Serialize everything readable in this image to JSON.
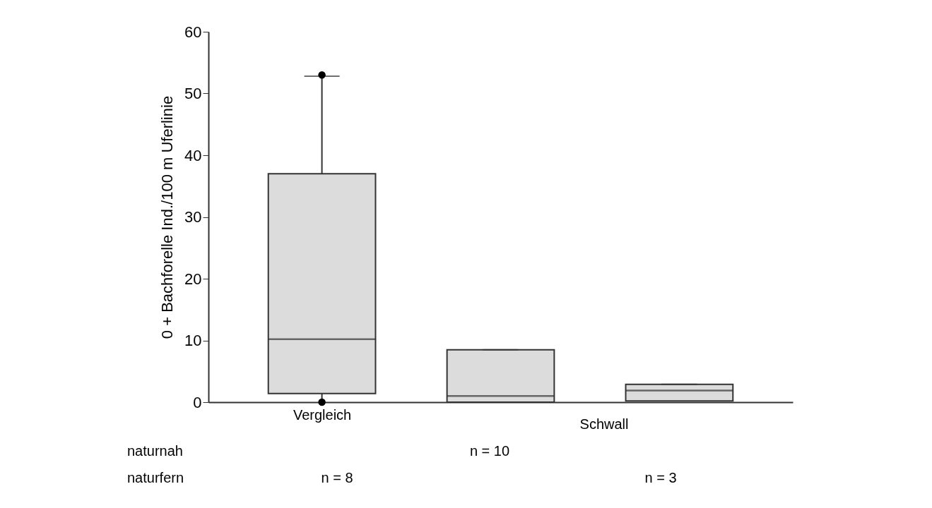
{
  "chart_data": {
    "type": "box",
    "ylabel": "0 + Bachforelle Ind./100 m Uferlinie",
    "categories": [
      "Vergleich",
      null,
      null
    ],
    "series": [
      {
        "color": "#dcdcdc",
        "boxes": [
          {
            "low": 0,
            "q1": 1.4,
            "median": 10.2,
            "q3": 37.0,
            "high": 52.8,
            "outliers": [
              53,
              0
            ]
          },
          {
            "low": 0,
            "q1": 0,
            "median": 1.0,
            "q3": 8.5,
            "high": 8.5
          },
          {
            "low": 0.2,
            "q1": 0.2,
            "median": 1.9,
            "q3": 2.9,
            "high": 2.9
          }
        ]
      }
    ],
    "ylim": [
      0,
      60
    ],
    "yticks": [
      0,
      10,
      20,
      30,
      40,
      50,
      60
    ],
    "annotations": [
      "Schwall",
      "naturnah",
      "naturfern",
      "n = 8",
      "n = 10",
      "n = 3"
    ]
  }
}
